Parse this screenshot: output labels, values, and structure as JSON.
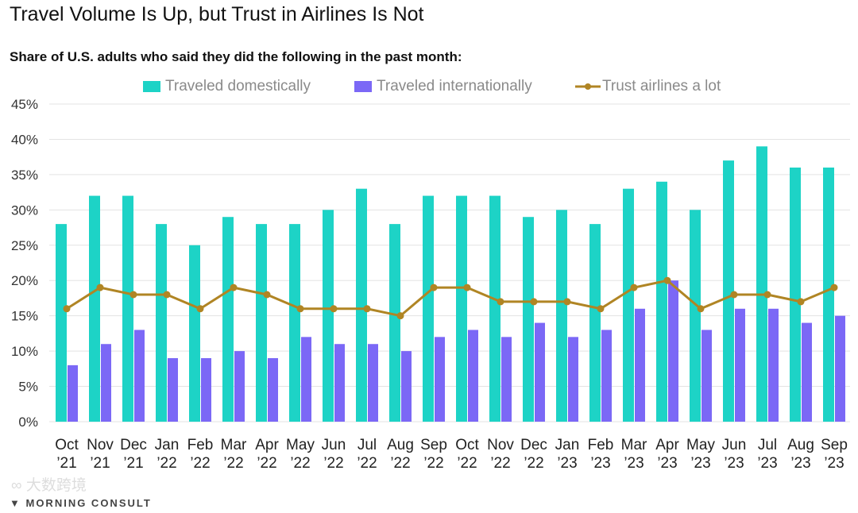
{
  "chart_data": {
    "type": "bar",
    "title": "Travel Volume Is Up, but Trust in Airlines Is Not",
    "subtitle": "Share of U.S. adults who said they did the following in the past month:",
    "xlabel": "",
    "ylabel": "",
    "ylim": [
      0,
      45
    ],
    "yticks": [
      "0%",
      "5%",
      "10%",
      "15%",
      "20%",
      "25%",
      "30%",
      "35%",
      "40%",
      "45%"
    ],
    "ytick_values": [
      0,
      5,
      10,
      15,
      20,
      25,
      30,
      35,
      40,
      45
    ],
    "grid": true,
    "legend_position": "top",
    "categories": [
      [
        "Oct",
        "’21"
      ],
      [
        "Nov",
        "’21"
      ],
      [
        "Dec",
        "’21"
      ],
      [
        "Jan",
        "’22"
      ],
      [
        "Feb",
        "’22"
      ],
      [
        "Mar",
        "’22"
      ],
      [
        "Apr",
        "’22"
      ],
      [
        "May",
        "’22"
      ],
      [
        "Jun",
        "’22"
      ],
      [
        "Jul",
        "’22"
      ],
      [
        "Aug",
        "’22"
      ],
      [
        "Sep",
        "’22"
      ],
      [
        "Oct",
        "’22"
      ],
      [
        "Nov",
        "’22"
      ],
      [
        "Dec",
        "’22"
      ],
      [
        "Jan",
        "’23"
      ],
      [
        "Feb",
        "’23"
      ],
      [
        "Mar",
        "’23"
      ],
      [
        "Apr",
        "’23"
      ],
      [
        "May",
        "’23"
      ],
      [
        "Jun",
        "’23"
      ],
      [
        "Jul",
        "’23"
      ],
      [
        "Aug",
        "’23"
      ],
      [
        "Sep",
        "’23"
      ]
    ],
    "series": [
      {
        "name": "Traveled domestically",
        "type": "bar",
        "color": "#1dd3c6",
        "values": [
          28,
          32,
          32,
          28,
          25,
          29,
          28,
          28,
          30,
          33,
          28,
          32,
          32,
          32,
          29,
          30,
          28,
          33,
          34,
          30,
          37,
          39,
          36,
          36
        ]
      },
      {
        "name": "Traveled internationally",
        "type": "bar",
        "color": "#7b68f6",
        "values": [
          8,
          11,
          13,
          9,
          9,
          10,
          9,
          12,
          11,
          11,
          10,
          12,
          13,
          12,
          14,
          12,
          13,
          16,
          20,
          13,
          16,
          16,
          14,
          15
        ]
      },
      {
        "name": "Trust airlines a lot",
        "type": "line",
        "color": "#b08524",
        "values": [
          16,
          19,
          18,
          18,
          16,
          19,
          18,
          16,
          16,
          16,
          15,
          19,
          19,
          17,
          17,
          17,
          16,
          19,
          20,
          16,
          18,
          18,
          17,
          19
        ]
      }
    ]
  },
  "logo_text": "MORNING CONSULT",
  "watermark_text": "大数跨境"
}
